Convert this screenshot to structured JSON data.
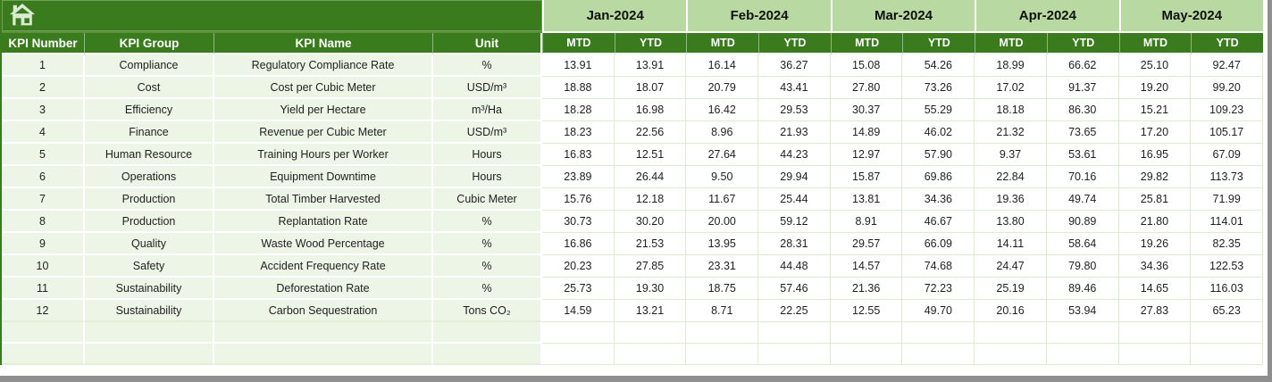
{
  "table": {
    "columns": [
      "KPI Number",
      "KPI Group",
      "KPI Name",
      "Unit"
    ],
    "months": [
      {
        "label": "Jan-2024"
      },
      {
        "label": "Feb-2024"
      },
      {
        "label": "Mar-2024"
      },
      {
        "label": "Apr-2024"
      },
      {
        "label": "May-2024"
      }
    ],
    "sub_headers": {
      "mtd": "MTD",
      "ytd": "YTD"
    },
    "rows": [
      {
        "num": "1",
        "group": "Compliance",
        "name": "Regulatory Compliance Rate",
        "unit": "%",
        "values": [
          "13.91",
          "13.91",
          "16.14",
          "36.27",
          "15.08",
          "54.26",
          "18.99",
          "66.62",
          "25.10",
          "92.47"
        ]
      },
      {
        "num": "2",
        "group": "Cost",
        "name": "Cost per Cubic Meter",
        "unit": "USD/m³",
        "values": [
          "18.88",
          "18.07",
          "20.79",
          "43.41",
          "27.80",
          "73.26",
          "17.02",
          "91.37",
          "19.20",
          "99.20"
        ]
      },
      {
        "num": "3",
        "group": "Efficiency",
        "name": "Yield per Hectare",
        "unit": "m³/Ha",
        "values": [
          "18.28",
          "16.98",
          "16.42",
          "29.53",
          "30.37",
          "55.29",
          "18.18",
          "86.30",
          "15.21",
          "109.23"
        ]
      },
      {
        "num": "4",
        "group": "Finance",
        "name": "Revenue per Cubic Meter",
        "unit": "USD/m³",
        "values": [
          "18.23",
          "22.56",
          "8.96",
          "21.93",
          "14.89",
          "46.02",
          "21.32",
          "73.65",
          "17.20",
          "105.17"
        ]
      },
      {
        "num": "5",
        "group": "Human Resource",
        "name": "Training Hours per Worker",
        "unit": "Hours",
        "values": [
          "16.83",
          "12.51",
          "27.64",
          "44.23",
          "12.97",
          "57.90",
          "9.37",
          "53.61",
          "16.95",
          "67.09"
        ]
      },
      {
        "num": "6",
        "group": "Operations",
        "name": "Equipment Downtime",
        "unit": "Hours",
        "values": [
          "23.89",
          "26.44",
          "9.50",
          "29.94",
          "15.87",
          "69.86",
          "22.84",
          "70.16",
          "29.82",
          "113.73"
        ]
      },
      {
        "num": "7",
        "group": "Production",
        "name": "Total Timber Harvested",
        "unit": "Cubic Meter",
        "values": [
          "15.76",
          "12.18",
          "11.67",
          "25.44",
          "13.81",
          "34.36",
          "19.36",
          "49.74",
          "25.81",
          "71.99"
        ]
      },
      {
        "num": "8",
        "group": "Production",
        "name": "Replantation Rate",
        "unit": "%",
        "values": [
          "30.73",
          "30.20",
          "20.00",
          "59.12",
          "8.91",
          "46.67",
          "13.80",
          "90.89",
          "21.80",
          "114.01"
        ]
      },
      {
        "num": "9",
        "group": "Quality",
        "name": "Waste Wood Percentage",
        "unit": "%",
        "values": [
          "16.86",
          "21.53",
          "13.95",
          "28.31",
          "29.57",
          "66.09",
          "14.11",
          "58.64",
          "19.26",
          "82.35"
        ]
      },
      {
        "num": "10",
        "group": "Safety",
        "name": "Accident Frequency Rate",
        "unit": "%",
        "values": [
          "20.23",
          "27.85",
          "23.31",
          "44.48",
          "14.57",
          "74.68",
          "24.47",
          "79.80",
          "34.36",
          "122.53"
        ]
      },
      {
        "num": "11",
        "group": "Sustainability",
        "name": "Deforestation Rate",
        "unit": "%",
        "values": [
          "25.73",
          "19.30",
          "18.75",
          "57.46",
          "21.36",
          "72.23",
          "25.19",
          "89.46",
          "14.65",
          "116.03"
        ]
      },
      {
        "num": "12",
        "group": "Sustainability",
        "name": "Carbon Sequestration",
        "unit": "Tons CO₂",
        "values": [
          "14.59",
          "13.21",
          "8.71",
          "22.25",
          "12.55",
          "49.70",
          "20.16",
          "53.94",
          "27.83",
          "65.23"
        ]
      }
    ],
    "empty_row_count": 2
  },
  "icons": {
    "home": "home-icon"
  },
  "colors": {
    "header_green": "#3a7b1e",
    "month_band_green": "#b9d9a2",
    "row_tint_green": "#edf5e6",
    "gridline_green": "#ddebd1",
    "shadow_gray": "#8f8f8f"
  }
}
